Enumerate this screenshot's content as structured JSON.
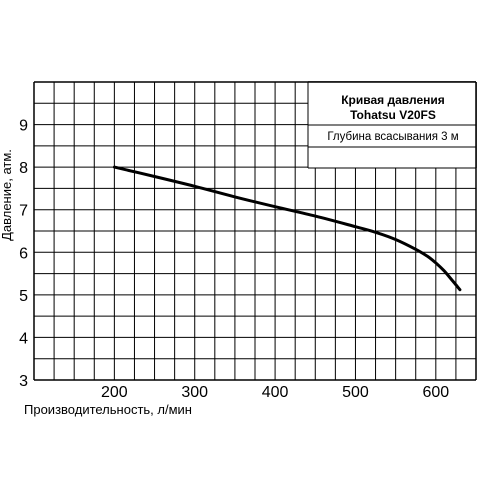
{
  "chart_data": {
    "type": "line",
    "title": "Кривая давления",
    "subtitle": "Tohatsu V20FS",
    "annotation": "Глубина всасывания 3 м",
    "xlabel": "Производительность, л/мин",
    "ylabel": "Давление, атм.",
    "xlim": [
      100,
      650
    ],
    "ylim": [
      3,
      10
    ],
    "x_ticks": [
      "200",
      "300",
      "400",
      "500",
      "600"
    ],
    "y_ticks": [
      "3",
      "4",
      "5",
      "6",
      "7",
      "8",
      "9"
    ],
    "grid": true,
    "series": [
      {
        "x": [
          200,
          250,
          300,
          350,
          400,
          450,
          500,
          525,
          550,
          575,
          590,
          600,
          610,
          620,
          630
        ],
        "y": [
          8.0,
          7.78,
          7.55,
          7.3,
          7.07,
          6.85,
          6.6,
          6.47,
          6.3,
          6.07,
          5.9,
          5.75,
          5.57,
          5.35,
          5.12
        ]
      }
    ]
  }
}
